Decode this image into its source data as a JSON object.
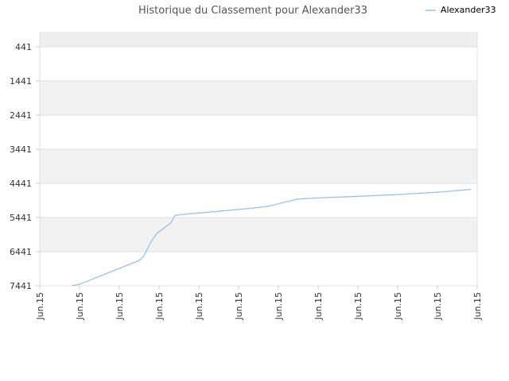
{
  "chart_data": {
    "type": "line",
    "title": "Historique du Classement pour Alexander33",
    "xlabel": "",
    "ylabel": "",
    "y_reversed": true,
    "ylim": [
      7441,
      0
    ],
    "y_ticks": [
      441,
      1441,
      2441,
      3441,
      4441,
      5441,
      6441,
      7441
    ],
    "y_tick_labels": [
      "441",
      "1441",
      "2441",
      "3441",
      "4441",
      "5441",
      "6441",
      "7441"
    ],
    "x_tick_labels": [
      "Jun.15",
      "Jun.15",
      "Jun.15",
      "Jun.15",
      "Jun.15",
      "Jun.15",
      "Jun.15",
      "Jun.15",
      "Jun.15",
      "Jun.15",
      "Jun.15",
      "Jun.15"
    ],
    "grid": true,
    "legend_position": "top-right",
    "colors": {
      "series": "#90c4ee",
      "band": "#f2f2f2",
      "grid": "#e0e0e0"
    },
    "series": [
      {
        "name": "Alexander33",
        "points": [
          {
            "x": 0.8,
            "y": 7441
          },
          {
            "x": 1.0,
            "y": 7400
          },
          {
            "x": 2.5,
            "y": 6700
          },
          {
            "x": 2.6,
            "y": 6600
          },
          {
            "x": 2.8,
            "y": 6150
          },
          {
            "x": 2.95,
            "y": 5900
          },
          {
            "x": 3.3,
            "y": 5600
          },
          {
            "x": 3.4,
            "y": 5380
          },
          {
            "x": 3.6,
            "y": 5350
          },
          {
            "x": 4.5,
            "y": 5260
          },
          {
            "x": 5.5,
            "y": 5150
          },
          {
            "x": 5.8,
            "y": 5100
          },
          {
            "x": 6.2,
            "y": 4980
          },
          {
            "x": 6.5,
            "y": 4900
          },
          {
            "x": 7.0,
            "y": 4870
          },
          {
            "x": 8.0,
            "y": 4820
          },
          {
            "x": 9.0,
            "y": 4770
          },
          {
            "x": 10.0,
            "y": 4700
          },
          {
            "x": 10.85,
            "y": 4620
          }
        ]
      }
    ]
  }
}
